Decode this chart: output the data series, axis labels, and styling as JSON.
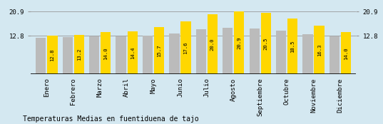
{
  "categories": [
    "Enero",
    "Febrero",
    "Marzo",
    "Abril",
    "Mayo",
    "Junio",
    "Julio",
    "Agosto",
    "Septiembre",
    "Octubre",
    "Noviembre",
    "Diciembre"
  ],
  "values": [
    12.8,
    13.2,
    14.0,
    14.4,
    15.7,
    17.6,
    20.0,
    20.9,
    20.5,
    18.5,
    16.3,
    14.0
  ],
  "gray_values": [
    12.1,
    12.3,
    12.6,
    12.7,
    13.0,
    13.5,
    15.0,
    15.5,
    15.2,
    14.5,
    13.3,
    12.6
  ],
  "bar_color_gold": "#FFD700",
  "bar_color_gray": "#BBBBBB",
  "background_color": "#D4E8F1",
  "title": "Temperaturas Medias en fuentiduena de tajo",
  "ylim_max": 23.5,
  "ytick_values": [
    12.8,
    20.9
  ],
  "grid_color": "#999999",
  "label_fontsize": 5.2,
  "title_fontsize": 7.0,
  "tick_fontsize": 6.5
}
